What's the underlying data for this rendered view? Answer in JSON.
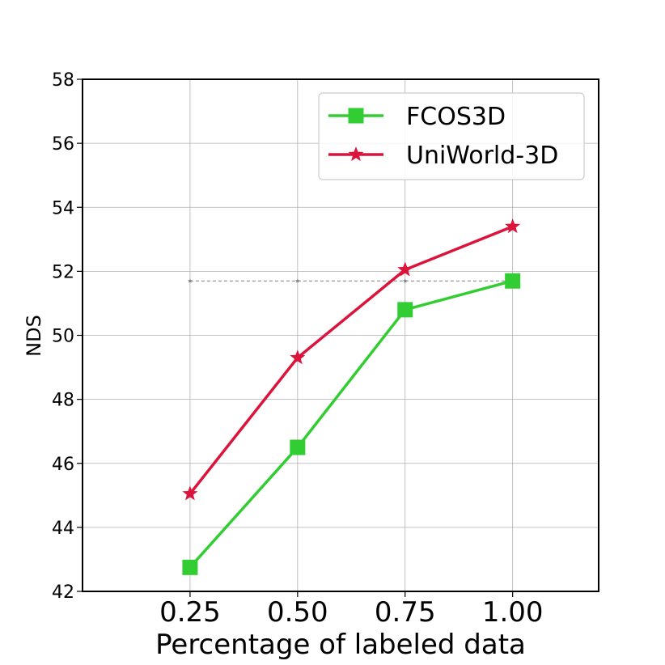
{
  "chart_data": {
    "type": "line",
    "xlabel": "Percentage of labeled data",
    "ylabel": "NDS",
    "x": [
      0.25,
      0.5,
      0.75,
      1.0
    ],
    "xtick_labels": [
      "0.25",
      "0.50",
      "0.75",
      "1.00"
    ],
    "xlim": [
      0.0,
      1.2
    ],
    "ylim": [
      42,
      58
    ],
    "yticks": [
      42,
      44,
      46,
      48,
      50,
      52,
      54,
      56,
      58
    ],
    "ytick_labels": [
      "42",
      "44",
      "46",
      "48",
      "50",
      "52",
      "54",
      "56",
      "58"
    ],
    "grid": true,
    "legend_position": "top-right",
    "series": [
      {
        "name": "FCOS3D",
        "values": [
          42.75,
          46.5,
          50.8,
          51.7
        ],
        "color": "#32cd32",
        "marker": "square"
      },
      {
        "name": "UniWorld-3D",
        "values": [
          45.05,
          49.3,
          52.05,
          53.4
        ],
        "color": "#dc143c",
        "marker": "star"
      }
    ],
    "reference_line": {
      "value": 51.7,
      "color": "#808080",
      "style": "dashed"
    }
  }
}
